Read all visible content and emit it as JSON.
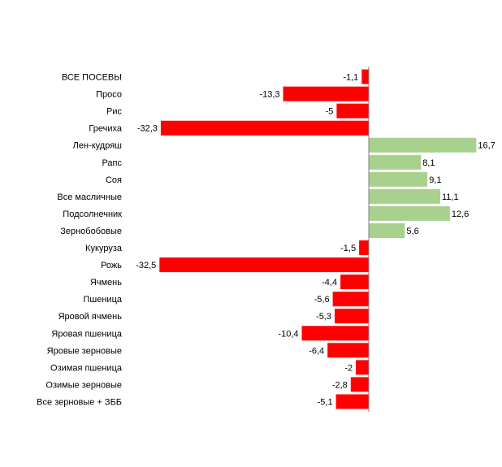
{
  "chart_data": {
    "type": "bar",
    "orientation": "horizontal",
    "title": "",
    "xlabel": "",
    "ylabel": "",
    "grid": false,
    "legend": "none",
    "xlim": [
      -32.5,
      16.7
    ],
    "categories": [
      "ВСЕ ПОСЕВЫ",
      "Просо",
      "Рис",
      "Гречиха",
      "Лен-кудряш",
      "Рапс",
      "Соя",
      "Все масличные",
      "Подсолнечник",
      "Зернобобовые",
      "Кукуруза",
      "Рожь",
      "Ячмень",
      "Пшеница",
      "Яровой ячмень",
      "Яровая пшеница",
      "Яровые зерновые",
      "Озимая пшеница",
      "Озимые зерновые",
      "Все зерновые + ЗББ"
    ],
    "values": [
      -1.1,
      -13.3,
      -5,
      -32.3,
      16.7,
      8.1,
      9.1,
      11.1,
      12.6,
      5.6,
      -1.5,
      -32.5,
      -4.4,
      -5.6,
      -5.3,
      -10.4,
      -6.4,
      -2,
      -2.8,
      -5.1
    ],
    "value_labels": [
      "-1,1",
      "-13,3",
      "-5",
      "-32,3",
      "16,7",
      "8,1",
      "9,1",
      "11,1",
      "12,6",
      "5,6",
      "-1,5",
      "-32,5",
      "-4,4",
      "-5,6",
      "-5,3",
      "-10,4",
      "-6,4",
      "-2",
      "-2,8",
      "-5,1"
    ],
    "colors": {
      "negative": "#ff0000",
      "positive": "#a9d18e",
      "axis": "#808080"
    }
  }
}
